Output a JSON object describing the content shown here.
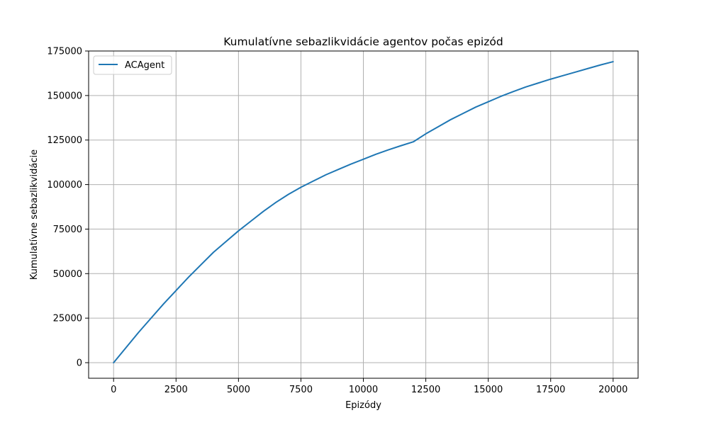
{
  "chart_data": {
    "type": "line",
    "title": "Kumulatívne sebazlikvidácie agentov počas epizód",
    "xlabel": "Epizódy",
    "ylabel": "Kumulatívne sebazlikvidácie",
    "xlim": [
      -1000,
      21000
    ],
    "ylim": [
      -8750,
      175000
    ],
    "xticks": [
      0,
      2500,
      5000,
      7500,
      10000,
      12500,
      15000,
      17500,
      20000
    ],
    "yticks": [
      0,
      25000,
      50000,
      75000,
      100000,
      125000,
      150000,
      175000
    ],
    "grid": true,
    "legend_position": "upper left",
    "series": [
      {
        "name": "ACAgent",
        "color": "#1f77b4",
        "x": [
          0,
          500,
          1000,
          1500,
          2000,
          2500,
          3000,
          3500,
          4000,
          4500,
          5000,
          5500,
          6000,
          6500,
          7000,
          7500,
          8000,
          8500,
          9000,
          9500,
          10000,
          10500,
          11000,
          11500,
          12000,
          12500,
          13000,
          13500,
          14000,
          14500,
          15000,
          15500,
          16000,
          16500,
          17000,
          17500,
          18000,
          18500,
          19000,
          19500,
          20000
        ],
        "y": [
          0,
          8500,
          17000,
          25000,
          33000,
          40500,
          48000,
          55000,
          62000,
          68000,
          74000,
          79500,
          85000,
          90000,
          94500,
          98500,
          102000,
          105500,
          108500,
          111500,
          114200,
          117000,
          119500,
          121800,
          124000,
          128500,
          132500,
          136500,
          140000,
          143500,
          146500,
          149500,
          152200,
          154800,
          157000,
          159200,
          161200,
          163200,
          165200,
          167200,
          169000
        ]
      }
    ]
  }
}
